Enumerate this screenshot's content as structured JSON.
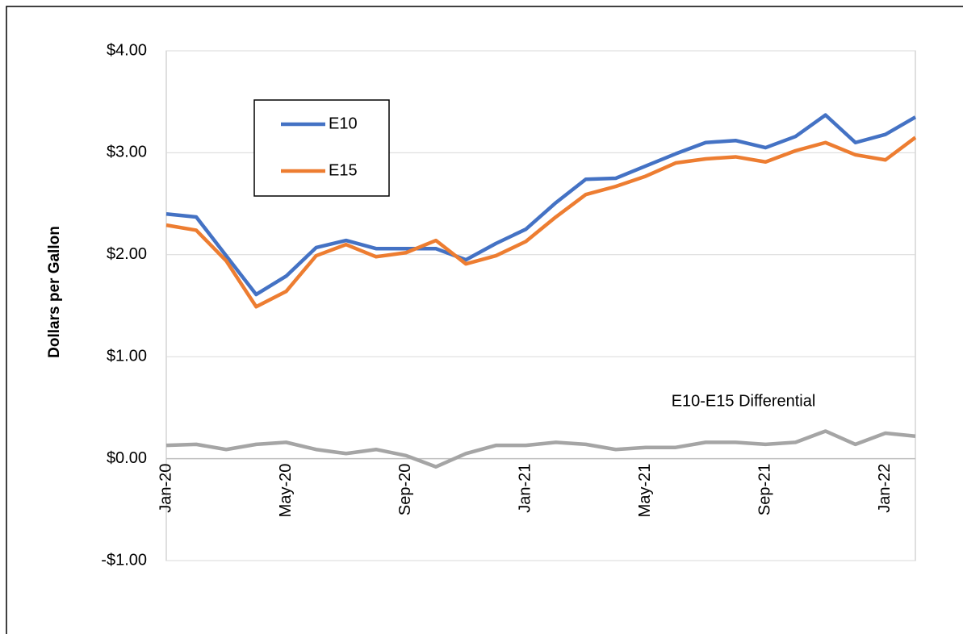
{
  "chart_data": {
    "type": "line",
    "y_label": "Dollars per Gallon",
    "categories": [
      "Jan-20",
      null,
      null,
      null,
      "May-20",
      null,
      null,
      null,
      "Sep-20",
      null,
      null,
      null,
      "Jan-21",
      null,
      null,
      null,
      "May-21",
      null,
      null,
      null,
      "Sep-21",
      null,
      null,
      null,
      "Jan-22",
      null
    ],
    "series": [
      {
        "name": "E10",
        "color": "#4472c4",
        "values": [
          2.4,
          2.37,
          1.99,
          1.61,
          1.79,
          2.07,
          2.14,
          2.06,
          2.06,
          2.06,
          1.95,
          2.11,
          2.25,
          2.51,
          2.74,
          2.75,
          2.87,
          2.99,
          3.1,
          3.12,
          3.05,
          3.16,
          3.37,
          3.1,
          3.18,
          3.35
        ]
      },
      {
        "name": "E15",
        "color": "#ed7d31",
        "values": [
          2.29,
          2.24,
          1.94,
          1.49,
          1.64,
          1.99,
          2.1,
          1.98,
          2.02,
          2.14,
          1.91,
          1.99,
          2.13,
          2.37,
          2.59,
          2.67,
          2.77,
          2.9,
          2.94,
          2.96,
          2.91,
          3.02,
          3.1,
          2.98,
          2.93,
          3.15
        ]
      },
      {
        "name": "E10-E15 Differential",
        "color": "#a5a5a5",
        "values": [
          0.13,
          0.14,
          0.09,
          0.14,
          0.16,
          0.09,
          0.05,
          0.09,
          0.03,
          -0.08,
          0.05,
          0.13,
          0.13,
          0.16,
          0.14,
          0.09,
          0.11,
          0.11,
          0.16,
          0.16,
          0.14,
          0.16,
          0.27,
          0.14,
          0.25,
          0.22
        ]
      }
    ],
    "ylim": [
      -1,
      4
    ],
    "yticks": [
      {
        "value": -1,
        "label": "-$1.00"
      },
      {
        "value": 0,
        "label": "$0.00"
      },
      {
        "value": 1,
        "label": "$1.00"
      },
      {
        "value": 2,
        "label": "$2.00"
      },
      {
        "value": 3,
        "label": "$3.00"
      },
      {
        "value": 4,
        "label": "$4.00"
      }
    ],
    "grid": true
  }
}
